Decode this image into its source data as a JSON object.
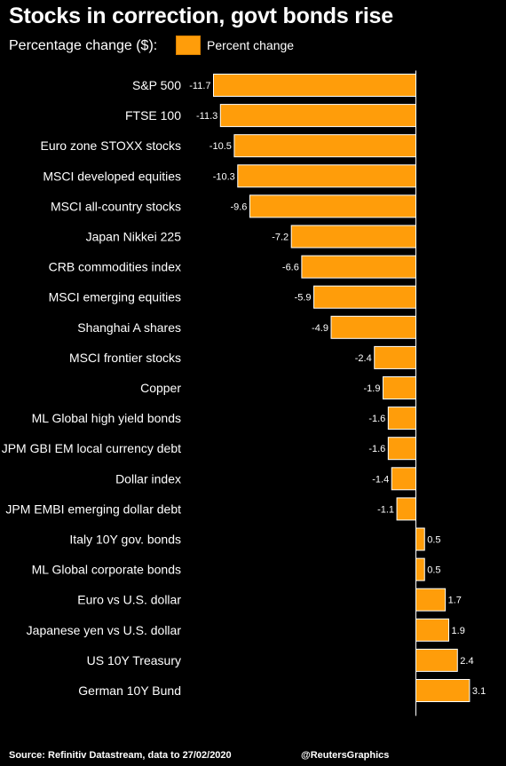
{
  "header": {
    "title": "Stocks in correction, govt bonds rise",
    "subtitle": "Percentage change ($):",
    "legend_label": "Percent change"
  },
  "footer": {
    "source": "Source: Refinitiv Datastream, data to 27/02/2020",
    "credit": "@ReutersGraphics"
  },
  "colors": {
    "bar": "#ff9d0a",
    "bar_edge": "#ffffff",
    "axis": "#ffffff",
    "background": "#000000"
  },
  "chart_data": {
    "type": "bar",
    "orientation": "horizontal",
    "categories": [
      "S&P 500",
      "FTSE 100",
      "Euro zone STOXX stocks",
      "MSCI developed equities",
      "MSCI all-country stocks",
      "Japan Nikkei 225",
      "CRB commodities index",
      "MSCI emerging equities",
      "Shanghai A shares",
      "MSCI frontier stocks",
      "Copper",
      "ML Global high yield bonds",
      "JPM GBI EM local currency debt",
      "Dollar index",
      "JPM EMBI emerging dollar debt",
      "Italy 10Y gov. bonds",
      "ML Global corporate bonds",
      "Euro vs U.S. dollar",
      "Japanese yen vs U.S. dollar",
      "US 10Y Treasury",
      "German 10Y Bund"
    ],
    "series": [
      {
        "name": "Percent change",
        "values": [
          -11.7,
          -11.3,
          -10.5,
          -10.3,
          -9.6,
          -7.2,
          -6.6,
          -5.9,
          -4.9,
          -2.4,
          -1.9,
          -1.6,
          -1.6,
          -1.4,
          -1.1,
          0.5,
          0.5,
          1.7,
          1.9,
          2.4,
          3.1
        ]
      }
    ],
    "data_labels": [
      "-11.7",
      "-11.3",
      "-10.5",
      "-10.3",
      "-9.6",
      "-7.2",
      "-6.6",
      "-5.9",
      "-4.9",
      "-2.4",
      "-1.9",
      "-1.6",
      "-1.6",
      "-1.4",
      "-1.1",
      "0.5",
      "0.5",
      "1.7",
      "1.9",
      "2.4",
      "3.1"
    ],
    "xlim": [
      -11.7,
      3.1
    ],
    "grid": false,
    "legend": "top"
  }
}
